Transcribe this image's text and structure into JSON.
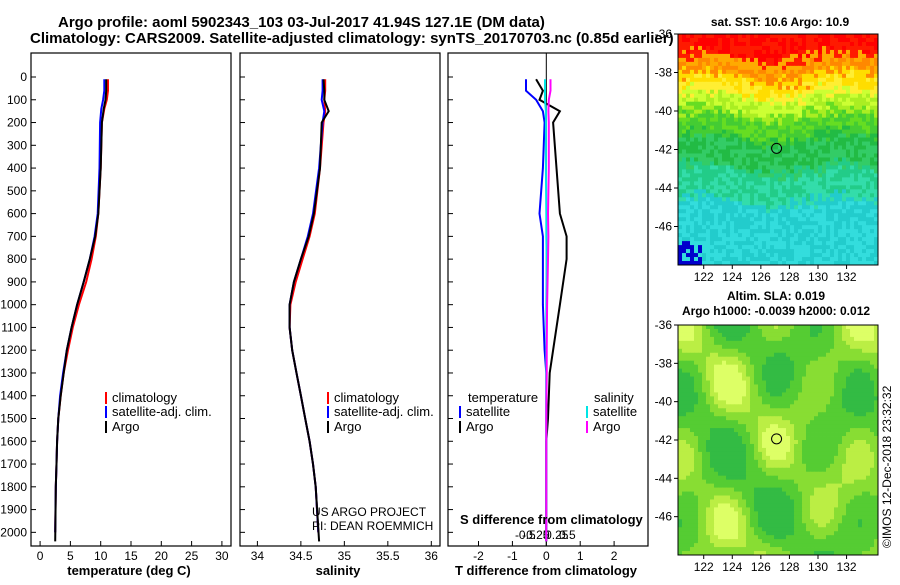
{
  "header": {
    "line1": "Argo profile: aoml 5902343_103 03-Jul-2017 41.94S 127.1E (DM data)",
    "line2": "Climatology: CARS2009. Satellite-adjusted climatology: synTS_20170703.nc (0.85d earlier)"
  },
  "colors": {
    "climatology": "#ff0000",
    "satellite": "#0000ff",
    "argo": "#000000",
    "sal_satellite": "#00e5e5",
    "sal_argo": "#ff00ff"
  },
  "chart_data": [
    {
      "type": "line",
      "panel": "temperature",
      "xlabel": "temperature (deg C)",
      "xlim": [
        -1.5,
        31.5
      ],
      "xticks": [
        0,
        5,
        10,
        15,
        20,
        25,
        30
      ],
      "ylim": [
        0,
        2060
      ],
      "yticks": [
        0,
        100,
        200,
        300,
        400,
        500,
        600,
        700,
        800,
        900,
        1000,
        1100,
        1200,
        1300,
        1400,
        1500,
        1600,
        1700,
        1800,
        1900,
        2000
      ],
      "ytick_labels": [
        "0",
        "100",
        "200",
        "300",
        "400",
        "500",
        "600",
        "700",
        "800",
        "900",
        "1000",
        "1100",
        "1200",
        "1300",
        "1400",
        "1500",
        "1600",
        "1700",
        "1800",
        "1900",
        "2000"
      ],
      "series": [
        {
          "name": "climatology",
          "color": "#ff0000",
          "x": [
            11.2,
            11.2,
            11.0,
            10.6,
            10.2,
            10.0,
            9.6,
            9.2,
            8.5,
            7.6,
            6.4,
            5.4,
            4.6,
            3.9,
            3.4,
            3.0,
            2.8,
            2.7,
            2.6,
            2.5
          ],
          "y": [
            10,
            60,
            100,
            140,
            200,
            400,
            600,
            700,
            800,
            900,
            1000,
            1100,
            1200,
            1300,
            1400,
            1500,
            1600,
            1700,
            1800,
            2000
          ]
        },
        {
          "name": "satellite-adj. clim.",
          "color": "#0000ff",
          "x": [
            10.6,
            10.6,
            10.4,
            10.1,
            9.9,
            9.8,
            9.5,
            9.0,
            8.2,
            7.2,
            6.1,
            5.2,
            4.4,
            3.8,
            3.3,
            3.0,
            2.8,
            2.7,
            2.6,
            2.5
          ],
          "y": [
            10,
            60,
            100,
            140,
            200,
            400,
            600,
            700,
            800,
            900,
            1000,
            1100,
            1200,
            1300,
            1400,
            1500,
            1600,
            1700,
            1800,
            2000
          ]
        },
        {
          "name": "Argo",
          "color": "#000000",
          "x": [
            10.9,
            10.9,
            10.8,
            10.5,
            10.2,
            10.0,
            9.6,
            9.1,
            8.2,
            7.2,
            6.1,
            5.2,
            4.4,
            3.9,
            3.4,
            3.0,
            2.8,
            2.7,
            2.6,
            2.5
          ],
          "y": [
            10,
            60,
            100,
            140,
            200,
            400,
            600,
            700,
            800,
            900,
            1000,
            1100,
            1200,
            1300,
            1400,
            1500,
            1600,
            1700,
            1800,
            2040
          ]
        }
      ],
      "legend": [
        "climatology",
        "satellite-adj. clim.",
        "Argo"
      ]
    },
    {
      "type": "line",
      "panel": "salinity",
      "xlabel": "salinity",
      "xlim": [
        33.8,
        36.1
      ],
      "xticks": [
        34,
        34.5,
        35,
        35.5,
        36
      ],
      "xtick_labels": [
        "34",
        "34.5",
        "35",
        "35.5",
        "36"
      ],
      "series": [
        {
          "name": "climatology",
          "color": "#ff0000",
          "x": [
            34.78,
            34.78,
            34.77,
            34.78,
            34.76,
            34.72,
            34.66,
            34.6,
            34.52,
            34.44,
            34.38,
            34.37,
            34.4,
            34.45,
            34.5,
            34.55,
            34.6,
            34.64,
            34.67,
            34.7
          ],
          "y": [
            10,
            60,
            100,
            150,
            200,
            400,
            600,
            700,
            800,
            900,
            1000,
            1100,
            1200,
            1300,
            1400,
            1500,
            1600,
            1700,
            1800,
            2000
          ]
        },
        {
          "name": "satellite-adj. clim.",
          "color": "#0000ff",
          "x": [
            34.75,
            34.75,
            34.74,
            34.77,
            34.75,
            34.71,
            34.64,
            34.58,
            34.5,
            34.42,
            34.37,
            34.37,
            34.4,
            34.45,
            34.5,
            34.55,
            34.6,
            34.64,
            34.67,
            34.7
          ],
          "y": [
            10,
            60,
            100,
            150,
            200,
            400,
            600,
            700,
            800,
            900,
            1000,
            1100,
            1200,
            1300,
            1400,
            1500,
            1600,
            1700,
            1800,
            2000
          ]
        },
        {
          "name": "Argo",
          "color": "#000000",
          "x": [
            34.76,
            34.77,
            34.77,
            34.82,
            34.74,
            34.72,
            34.65,
            34.59,
            34.5,
            34.42,
            34.37,
            34.37,
            34.4,
            34.45,
            34.5,
            34.55,
            34.6,
            34.64,
            34.67,
            34.71
          ],
          "y": [
            10,
            60,
            100,
            150,
            200,
            400,
            600,
            700,
            800,
            900,
            1000,
            1100,
            1200,
            1300,
            1400,
            1500,
            1600,
            1700,
            1800,
            2040
          ]
        }
      ],
      "legend": [
        "climatology",
        "satellite-adj. clim.",
        "Argo"
      ],
      "credit1": "US ARGO PROJECT",
      "credit2": "PI: DEAN ROEMMICH"
    },
    {
      "type": "line",
      "panel": "difference",
      "xlabel": "T difference from climatology",
      "xlim": [
        -2.9,
        3.0
      ],
      "xticks": [
        -2,
        -1,
        0,
        1,
        2
      ],
      "xtick_labels": [
        "-2",
        "-1",
        "0",
        "1",
        "2"
      ],
      "top_label": "S difference from climatology",
      "s_ticks": [
        -0.5,
        -0.25,
        0,
        0.25,
        0.5
      ],
      "s_tick_labels": [
        "-0.5",
        "-0.25",
        "0",
        "0.25",
        "0.5"
      ],
      "series": [
        {
          "name": "T satellite",
          "color": "#0000ff",
          "x": [
            -0.6,
            -0.6,
            -0.3,
            -0.1,
            -0.05,
            -0.1,
            -0.2,
            -0.1,
            -0.1,
            -0.1,
            -0.05,
            0,
            0,
            0,
            0,
            0,
            0
          ],
          "y": [
            10,
            60,
            100,
            150,
            200,
            400,
            600,
            700,
            800,
            1000,
            1200,
            1300,
            1500,
            1600,
            1800,
            1900,
            2040
          ]
        },
        {
          "name": "T Argo",
          "color": "#000000",
          "x": [
            -0.3,
            -0.1,
            -0.2,
            0.4,
            0.2,
            0.3,
            0.4,
            0.6,
            0.6,
            0.4,
            0.2,
            0.1,
            0.05,
            0,
            0,
            0,
            0
          ],
          "y": [
            10,
            60,
            100,
            150,
            200,
            400,
            600,
            700,
            800,
            1000,
            1200,
            1300,
            1500,
            1600,
            1800,
            1900,
            2040
          ]
        },
        {
          "name": "S satellite",
          "color": "#00e5e5",
          "x": [
            -0.03,
            -0.03,
            -0.03,
            -0.01,
            -0.01,
            -0.01,
            0,
            0,
            0.01,
            0,
            0,
            0,
            0,
            0,
            0,
            0,
            0
          ],
          "y": [
            10,
            60,
            100,
            150,
            200,
            400,
            600,
            700,
            800,
            1000,
            1200,
            1300,
            1500,
            1600,
            1800,
            1900,
            2040
          ]
        },
        {
          "name": "S Argo",
          "color": "#ff00ff",
          "x": [
            0.1,
            0.1,
            0.06,
            0.05,
            0.06,
            0.06,
            0.04,
            0.05,
            0.04,
            0.02,
            0.01,
            0.01,
            0,
            0,
            0,
            0,
            0
          ],
          "y": [
            10,
            60,
            100,
            150,
            200,
            400,
            600,
            700,
            800,
            1000,
            1200,
            1300,
            1500,
            1600,
            1800,
            1900,
            2040
          ]
        }
      ],
      "legend_t": {
        "head": "temperature",
        "items": [
          "satellite",
          "Argo"
        ]
      },
      "legend_s": {
        "head": "salinity",
        "items": [
          "satellite",
          "Argo"
        ]
      }
    },
    {
      "type": "heatmap",
      "panel": "sst_map",
      "title": "sat. SST: 10.6 Argo: 10.9",
      "xlim": [
        120.2,
        134.2
      ],
      "ylim": [
        -48,
        -36
      ],
      "xtick_labels": [
        "122",
        "124",
        "126",
        "128",
        "130",
        "132"
      ],
      "ytick_labels": [
        "-36",
        "-38",
        "-40",
        "-42",
        "-44",
        "-46"
      ],
      "marker": {
        "lon": 127.1,
        "lat": -41.94
      }
    },
    {
      "type": "heatmap",
      "panel": "sla_map",
      "title1": "Altim. SLA: 0.019",
      "title2": "Argo h1000: -0.0039 h2000: 0.012",
      "xlim": [
        120.2,
        134.2
      ],
      "ylim": [
        -48,
        -36
      ],
      "xtick_labels": [
        "122",
        "124",
        "126",
        "128",
        "130",
        "132"
      ],
      "ytick_labels": [
        "-36",
        "-38",
        "-40",
        "-42",
        "-44",
        "-46"
      ],
      "marker": {
        "lon": 127.1,
        "lat": -41.94
      },
      "stamp": "©IMOS 12-Dec-2018 23:32:32"
    }
  ]
}
